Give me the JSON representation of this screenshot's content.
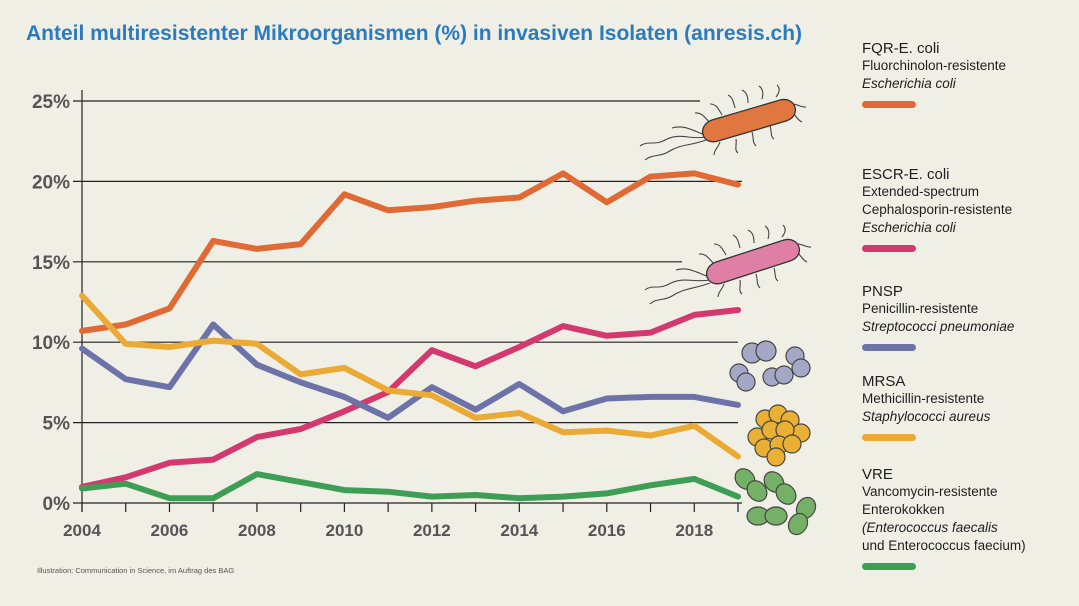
{
  "title": "Anteil multiresistenter Mikroorganismen (%) in invasiven Isolaten (anresis.ch)",
  "credit": "Illustration: Communication in Science, im Auftrag des BAG",
  "legend": [
    {
      "name": "FQR-E. coli",
      "lines": [
        {
          "text": "Fluorchinolon-resistente",
          "italic": false
        },
        {
          "text": "Escherichia coli",
          "italic": true
        }
      ],
      "color": "#e06a35"
    },
    {
      "name": "ESCR-E. coli",
      "lines": [
        {
          "text": "Extended-spectrum",
          "italic": false
        },
        {
          "text": "Cephalosporin-resistente",
          "italic": false
        },
        {
          "text": "Escherichia coli",
          "italic": true
        }
      ],
      "color": "#d3386f"
    },
    {
      "name": "PNSP",
      "lines": [
        {
          "text": "Penicillin-resistente",
          "italic": false
        },
        {
          "text": "Streptococci pneumoniae",
          "italic": true
        }
      ],
      "color": "#6d73a8"
    },
    {
      "name": "MRSA",
      "lines": [
        {
          "text": "Methicillin-resistente",
          "italic": false
        },
        {
          "text": "Staphylococci aureus",
          "italic": true
        }
      ],
      "color": "#eaaa35"
    },
    {
      "name": "VRE",
      "lines": [
        {
          "text": "Vancomycin-resistente",
          "italic": false
        },
        {
          "text": "Enterokokken",
          "italic": false
        },
        {
          "text": "(Enterococcus faecalis",
          "italic": true
        },
        {
          "text": "und Enterococcus faecium)",
          "italic": false
        }
      ],
      "color": "#3f9e55"
    }
  ],
  "chart_data": {
    "type": "line",
    "title": "Anteil multiresistenter Mikroorganismen (%) in invasiven Isolaten (anresis.ch)",
    "xlabel": "",
    "ylabel": "",
    "x": [
      2004,
      2005,
      2006,
      2007,
      2008,
      2009,
      2010,
      2011,
      2012,
      2013,
      2014,
      2015,
      2016,
      2017,
      2018,
      2019
    ],
    "xticks": [
      2004,
      2006,
      2008,
      2010,
      2012,
      2014,
      2016,
      2018
    ],
    "yticks": [
      0,
      5,
      10,
      15,
      20,
      25
    ],
    "ytick_labels": [
      "0%",
      "5%",
      "10%",
      "15%",
      "20%",
      "25%"
    ],
    "ylim": [
      0,
      25
    ],
    "grid": true,
    "legend_position": "right",
    "series": [
      {
        "name": "FQR-E. coli",
        "color": "#e06a35",
        "values": [
          10.7,
          11.1,
          12.1,
          16.3,
          15.8,
          16.1,
          19.2,
          18.2,
          18.4,
          18.8,
          19.0,
          20.5,
          18.7,
          20.3,
          20.5,
          19.8
        ]
      },
      {
        "name": "ESCR-E. coli",
        "color": "#d3386f",
        "values": [
          1.0,
          1.6,
          2.5,
          2.7,
          4.1,
          4.6,
          5.7,
          6.9,
          9.5,
          8.5,
          9.7,
          11.0,
          10.4,
          10.6,
          11.7,
          12.0
        ]
      },
      {
        "name": "PNSP",
        "color": "#6d73a8",
        "values": [
          9.6,
          7.7,
          7.2,
          11.1,
          8.6,
          7.5,
          6.6,
          5.3,
          7.2,
          5.8,
          7.4,
          5.7,
          6.5,
          6.6,
          6.6,
          6.1
        ]
      },
      {
        "name": "MRSA",
        "color": "#eaaa35",
        "values": [
          12.9,
          9.9,
          9.7,
          10.1,
          9.9,
          8.0,
          8.4,
          7.0,
          6.7,
          5.3,
          5.6,
          4.4,
          4.5,
          4.2,
          4.8,
          2.9
        ]
      },
      {
        "name": "VRE",
        "color": "#3f9e55",
        "values": [
          0.9,
          1.2,
          0.3,
          0.3,
          1.8,
          1.3,
          0.8,
          0.7,
          0.4,
          0.5,
          0.3,
          0.4,
          0.6,
          1.1,
          1.5,
          0.4
        ]
      }
    ]
  },
  "illustrations": [
    "rod-bacterium-orange",
    "rod-bacterium-pink",
    "diplococci-purple",
    "staphylococci-cluster-yellow",
    "enterococci-green"
  ]
}
